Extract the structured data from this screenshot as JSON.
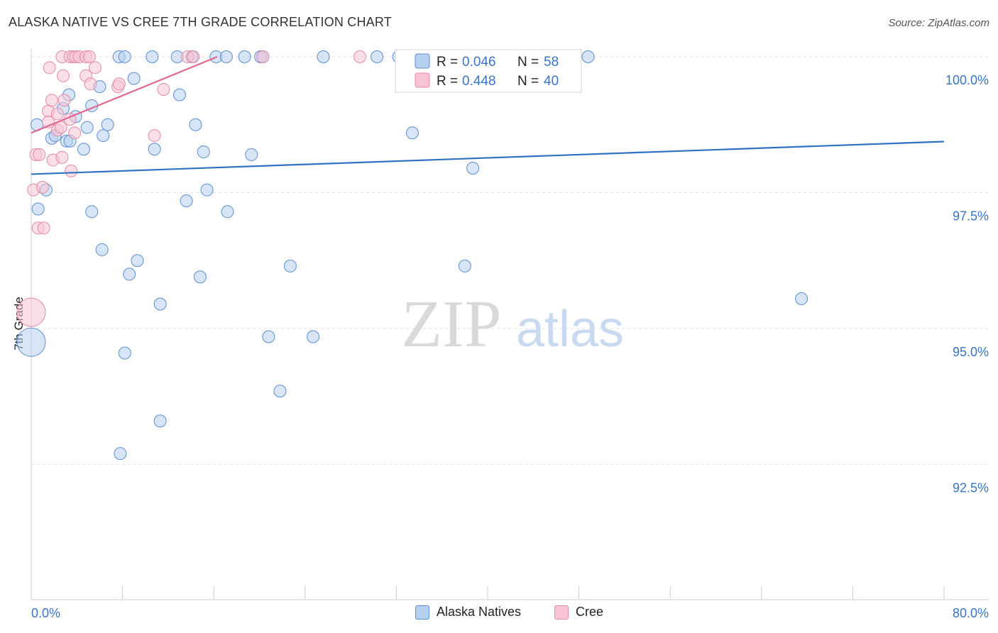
{
  "title": "ALASKA NATIVE VS CREE 7TH GRADE CORRELATION CHART",
  "source": "Source: ZipAtlas.com",
  "watermark": {
    "zip": "ZIP",
    "atlas": "atlas"
  },
  "colors": {
    "blue_fill": "#b8d0f0",
    "blue_stroke": "#5b8fd4",
    "blue_line": "#2f72c4",
    "pink_fill": "#f8c4d4",
    "pink_stroke": "#e58aa6",
    "pink_line": "#e0678f",
    "value_text": "#3a74c4",
    "grid": "#e2e2e2",
    "axis": "#cccccc"
  },
  "legend_top": {
    "rows": [
      {
        "r_label": "R = ",
        "r_value": "0.046",
        "n_label": "N = ",
        "n_value": "58",
        "series": "blue"
      },
      {
        "r_label": "R = ",
        "r_value": "0.448",
        "n_label": "N = ",
        "n_value": "40",
        "series": "pink"
      }
    ]
  },
  "legend_bottom": [
    {
      "label": "Alaska Natives",
      "series": "blue"
    },
    {
      "label": "Cree",
      "series": "pink"
    }
  ],
  "chart_data": {
    "type": "scatter",
    "title": "ALASKA NATIVE VS CREE 7TH GRADE CORRELATION CHART",
    "xlabel": "",
    "ylabel": "7th Grade",
    "xlim": [
      0,
      80
    ],
    "ylim": [
      90,
      100.3
    ],
    "x_tick_labels": [
      "0.0%",
      "80.0%"
    ],
    "y_ticks": [
      92.5,
      95.0,
      97.5,
      100.0
    ],
    "y_tick_labels": [
      "92.5%",
      "95.0%",
      "97.5%",
      "100.0%"
    ],
    "grid": true,
    "legend_placement": "top-center",
    "series": [
      {
        "name": "Alaska Natives",
        "color": "#5b8fd4",
        "trend": {
          "x": [
            0,
            80
          ],
          "y": [
            97.84,
            98.44
          ]
        },
        "points": [
          [
            0.0,
            94.75,
            3
          ],
          [
            0.5,
            98.75,
            1
          ],
          [
            0.6,
            97.2,
            1
          ],
          [
            1.3,
            97.55,
            1
          ],
          [
            1.8,
            98.5,
            1
          ],
          [
            2.1,
            98.55,
            1
          ],
          [
            3.1,
            98.45,
            1
          ],
          [
            3.3,
            99.3,
            1
          ],
          [
            2.8,
            99.05,
            1
          ],
          [
            3.4,
            98.45,
            1
          ],
          [
            3.9,
            98.9,
            1
          ],
          [
            4.6,
            98.3,
            1
          ],
          [
            4.9,
            98.7,
            1
          ],
          [
            5.3,
            97.15,
            1
          ],
          [
            5.3,
            99.1,
            1
          ],
          [
            6.0,
            99.45,
            1
          ],
          [
            6.2,
            96.45,
            1
          ],
          [
            6.3,
            98.55,
            1
          ],
          [
            6.7,
            98.75,
            1
          ],
          [
            7.8,
            92.7,
            1
          ],
          [
            7.7,
            100.0,
            1
          ],
          [
            8.2,
            100.0,
            1
          ],
          [
            8.2,
            94.55,
            1
          ],
          [
            8.6,
            96.0,
            1
          ],
          [
            9.0,
            99.6,
            1
          ],
          [
            9.3,
            96.25,
            1
          ],
          [
            10.6,
            100.0,
            1
          ],
          [
            10.8,
            98.3,
            1
          ],
          [
            11.3,
            93.3,
            1
          ],
          [
            11.3,
            95.45,
            1
          ],
          [
            12.8,
            100.0,
            1
          ],
          [
            13.0,
            99.3,
            1
          ],
          [
            13.6,
            97.35,
            1
          ],
          [
            14.1,
            100.0,
            1
          ],
          [
            14.4,
            98.75,
            1
          ],
          [
            14.8,
            95.95,
            1
          ],
          [
            15.1,
            98.25,
            1
          ],
          [
            15.4,
            97.55,
            1
          ],
          [
            16.2,
            100.0,
            1
          ],
          [
            17.1,
            100.0,
            1
          ],
          [
            17.2,
            97.15,
            1
          ],
          [
            18.7,
            100.0,
            1
          ],
          [
            19.3,
            98.2,
            1
          ],
          [
            20.1,
            100.0,
            1
          ],
          [
            20.3,
            100.0,
            1
          ],
          [
            20.8,
            94.85,
            1
          ],
          [
            21.8,
            93.85,
            1
          ],
          [
            22.7,
            96.15,
            1
          ],
          [
            24.7,
            94.85,
            1
          ],
          [
            25.6,
            100.0,
            1
          ],
          [
            30.3,
            100.0,
            1
          ],
          [
            32.2,
            100.0,
            1
          ],
          [
            33.4,
            98.6,
            1
          ],
          [
            38.0,
            96.15,
            1
          ],
          [
            38.7,
            97.95,
            1
          ],
          [
            41.4,
            100.0,
            1
          ],
          [
            48.8,
            100.0,
            1
          ],
          [
            67.5,
            95.55,
            1
          ]
        ]
      },
      {
        "name": "Cree",
        "color": "#e58aa6",
        "trend": {
          "x": [
            0,
            16.3
          ],
          "y": [
            98.6,
            100.0
          ]
        },
        "points": [
          [
            0.0,
            95.3,
            3
          ],
          [
            0.2,
            97.55,
            1
          ],
          [
            0.4,
            98.2,
            1
          ],
          [
            0.6,
            96.85,
            1
          ],
          [
            0.7,
            98.2,
            1
          ],
          [
            1.0,
            97.6,
            1
          ],
          [
            1.1,
            96.85,
            1
          ],
          [
            1.5,
            99.0,
            1
          ],
          [
            1.5,
            98.8,
            1
          ],
          [
            1.6,
            99.8,
            1
          ],
          [
            1.8,
            99.2,
            1
          ],
          [
            1.9,
            98.1,
            1
          ],
          [
            2.3,
            98.95,
            1
          ],
          [
            2.3,
            98.65,
            1
          ],
          [
            2.6,
            98.7,
            1
          ],
          [
            2.7,
            98.15,
            1
          ],
          [
            2.7,
            100.0,
            1
          ],
          [
            2.8,
            99.65,
            1
          ],
          [
            2.9,
            99.2,
            1
          ],
          [
            3.4,
            98.85,
            1
          ],
          [
            3.4,
            100.0,
            1
          ],
          [
            3.5,
            97.9,
            1
          ],
          [
            3.7,
            100.0,
            1
          ],
          [
            3.8,
            98.6,
            1
          ],
          [
            3.9,
            100.0,
            1
          ],
          [
            4.2,
            100.0,
            1
          ],
          [
            4.8,
            100.0,
            1
          ],
          [
            4.8,
            99.65,
            1
          ],
          [
            5.1,
            100.0,
            1
          ],
          [
            5.2,
            99.5,
            1
          ],
          [
            5.6,
            99.8,
            1
          ],
          [
            7.6,
            99.45,
            1
          ],
          [
            7.7,
            99.5,
            1
          ],
          [
            10.8,
            98.55,
            1
          ],
          [
            11.6,
            99.4,
            1
          ],
          [
            13.7,
            100.0,
            1
          ],
          [
            14.2,
            100.0,
            1
          ],
          [
            20.3,
            100.0,
            1
          ],
          [
            28.8,
            100.0,
            1
          ],
          [
            46.9,
            100.0,
            1
          ]
        ]
      }
    ]
  }
}
